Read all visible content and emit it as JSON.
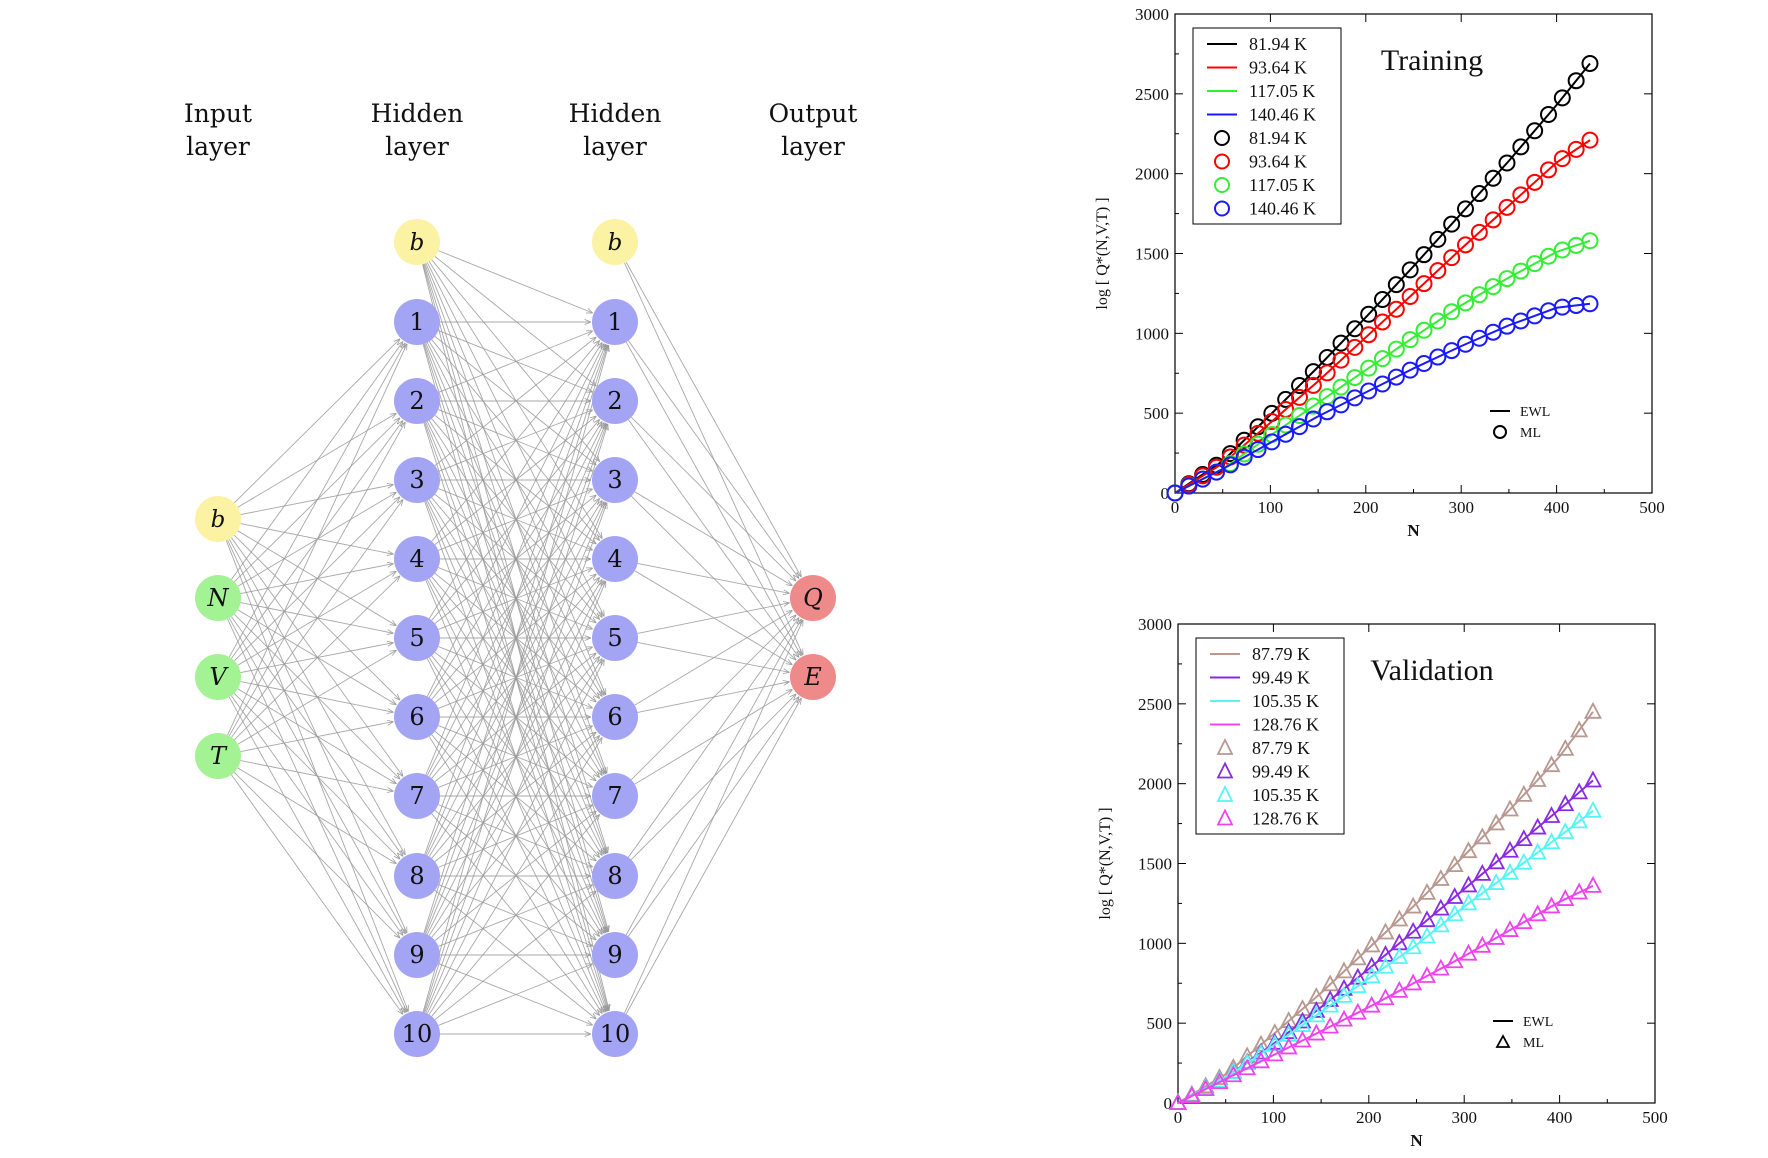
{
  "network": {
    "layers": [
      {
        "heading": [
          "Input",
          "layer"
        ],
        "nodes": [
          {
            "label": "b",
            "kind": "bias",
            "italic": true
          },
          {
            "label": "N",
            "kind": "input",
            "italic": true
          },
          {
            "label": "V",
            "kind": "input",
            "italic": true
          },
          {
            "label": "T",
            "kind": "input",
            "italic": true
          }
        ]
      },
      {
        "heading": [
          "Hidden",
          "layer"
        ],
        "nodes": [
          {
            "label": "b",
            "kind": "bias",
            "italic": true
          },
          {
            "label": "1",
            "kind": "hidden"
          },
          {
            "label": "2",
            "kind": "hidden"
          },
          {
            "label": "3",
            "kind": "hidden"
          },
          {
            "label": "4",
            "kind": "hidden"
          },
          {
            "label": "5",
            "kind": "hidden"
          },
          {
            "label": "6",
            "kind": "hidden"
          },
          {
            "label": "7",
            "kind": "hidden"
          },
          {
            "label": "8",
            "kind": "hidden"
          },
          {
            "label": "9",
            "kind": "hidden"
          },
          {
            "label": "10",
            "kind": "hidden"
          }
        ]
      },
      {
        "heading": [
          "Hidden",
          "layer"
        ],
        "nodes": [
          {
            "label": "b",
            "kind": "bias",
            "italic": true
          },
          {
            "label": "1",
            "kind": "hidden"
          },
          {
            "label": "2",
            "kind": "hidden"
          },
          {
            "label": "3",
            "kind": "hidden"
          },
          {
            "label": "4",
            "kind": "hidden"
          },
          {
            "label": "5",
            "kind": "hidden"
          },
          {
            "label": "6",
            "kind": "hidden"
          },
          {
            "label": "7",
            "kind": "hidden"
          },
          {
            "label": "8",
            "kind": "hidden"
          },
          {
            "label": "9",
            "kind": "hidden"
          },
          {
            "label": "10",
            "kind": "hidden"
          }
        ]
      },
      {
        "heading": [
          "Output",
          "layer"
        ],
        "nodes": [
          {
            "label": "Q",
            "kind": "output",
            "italic": true
          },
          {
            "label": "E",
            "kind": "output",
            "italic": true
          }
        ]
      }
    ],
    "colors": {
      "bias": "#fbf2a3",
      "input": "#a3f294",
      "hidden": "#a4a4f4",
      "output": "#ef8a8a",
      "edge": "#999999"
    }
  },
  "chart_data": [
    {
      "type": "line",
      "title": "Training",
      "xlabel": "N",
      "ylabel": "log [ Q*(N,V,T) ]",
      "xlim": [
        0,
        500
      ],
      "ylim": [
        0,
        3000
      ],
      "xticks": [
        0,
        100,
        200,
        300,
        400,
        500
      ],
      "yticks": [
        0,
        500,
        1000,
        1500,
        2000,
        2500,
        3000
      ],
      "marker": "circle",
      "legend_position": "top-left",
      "legend": [
        {
          "label": "81.94 K",
          "style": "line",
          "color": "#000000"
        },
        {
          "label": "93.64 K",
          "style": "line",
          "color": "#ff0000"
        },
        {
          "label": "117.05 K",
          "style": "line",
          "color": "#33ee33"
        },
        {
          "label": "140.46 K",
          "style": "line",
          "color": "#1a1aff"
        },
        {
          "label": "81.94 K",
          "style": "marker",
          "color": "#000000"
        },
        {
          "label": "93.64 K",
          "style": "marker",
          "color": "#ff0000"
        },
        {
          "label": "117.05 K",
          "style": "marker",
          "color": "#33ee33"
        },
        {
          "label": "140.46 K",
          "style": "marker",
          "color": "#1a1aff"
        }
      ],
      "method_legend": [
        {
          "label": "EWL",
          "style": "line"
        },
        {
          "label": "ML",
          "style": "marker"
        }
      ],
      "x": [
        0,
        50,
        100,
        150,
        200,
        250,
        300,
        350,
        400,
        435
      ],
      "series": [
        {
          "name": "81.94 K",
          "color": "#000000",
          "values": [
            0,
            200,
            490,
            790,
            1100,
            1420,
            1750,
            2080,
            2430,
            2690
          ]
        },
        {
          "name": "93.64 K",
          "color": "#ff0000",
          "values": [
            0,
            185,
            440,
            700,
            975,
            1250,
            1530,
            1800,
            2070,
            2210
          ]
        },
        {
          "name": "117.05 K",
          "color": "#33ee33",
          "values": [
            0,
            150,
            360,
            565,
            770,
            975,
            1175,
            1350,
            1510,
            1580
          ]
        },
        {
          "name": "140.46 K",
          "color": "#1a1aff",
          "values": [
            0,
            150,
            315,
            480,
            630,
            780,
            920,
            1050,
            1160,
            1185
          ]
        }
      ]
    },
    {
      "type": "line",
      "title": "Validation",
      "xlabel": "N",
      "ylabel": "log [ Q*(N,V,T) ]",
      "xlim": [
        0,
        500
      ],
      "ylim": [
        0,
        3000
      ],
      "xticks": [
        0,
        100,
        200,
        300,
        400,
        500
      ],
      "yticks": [
        0,
        500,
        1000,
        1500,
        2000,
        2500,
        3000
      ],
      "marker": "triangle",
      "legend_position": "top-left",
      "legend": [
        {
          "label": "87.79 K",
          "style": "line",
          "color": "#b89890"
        },
        {
          "label": "99.49 K",
          "style": "line",
          "color": "#8a2be2"
        },
        {
          "label": "105.35 K",
          "style": "line",
          "color": "#55f5f5"
        },
        {
          "label": "128.76 K",
          "style": "line",
          "color": "#ee44ee"
        },
        {
          "label": "87.79 K",
          "style": "marker",
          "color": "#b89890"
        },
        {
          "label": "99.49 K",
          "style": "marker",
          "color": "#8a2be2"
        },
        {
          "label": "105.35 K",
          "style": "marker",
          "color": "#55f5f5"
        },
        {
          "label": "128.76 K",
          "style": "marker",
          "color": "#ee44ee"
        }
      ],
      "method_legend": [
        {
          "label": "EWL",
          "style": "line"
        },
        {
          "label": "ML",
          "style": "marker"
        }
      ],
      "x": [
        0,
        50,
        100,
        150,
        200,
        250,
        300,
        350,
        400,
        435
      ],
      "series": [
        {
          "name": "87.79 K",
          "color": "#b89890",
          "values": [
            0,
            180,
            430,
            690,
            970,
            1250,
            1550,
            1850,
            2170,
            2450
          ]
        },
        {
          "name": "99.49 K",
          "color": "#8a2be2",
          "values": [
            0,
            160,
            370,
            600,
            840,
            1090,
            1340,
            1590,
            1840,
            2020
          ]
        },
        {
          "name": "105.35 K",
          "color": "#55f5f5",
          "values": [
            0,
            160,
            360,
            570,
            780,
            990,
            1230,
            1450,
            1670,
            1830
          ]
        },
        {
          "name": "128.76 K",
          "color": "#ee44ee",
          "values": [
            0,
            150,
            300,
            450,
            600,
            760,
            920,
            1090,
            1260,
            1360
          ]
        }
      ]
    }
  ]
}
